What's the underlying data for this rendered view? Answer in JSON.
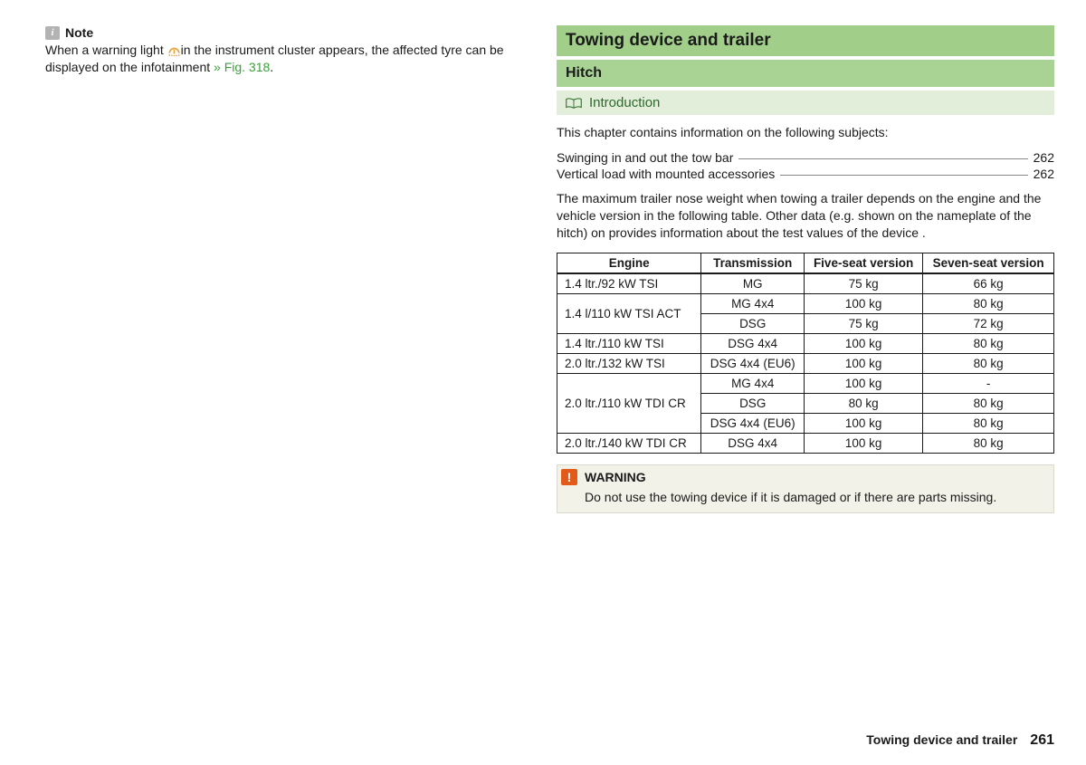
{
  "left": {
    "note_label": "Note",
    "note_text_1": "When a warning light ",
    "note_text_2": "in the instrument cluster appears, the affected tyre can be displayed on the infotainment ",
    "fig_ref": "» Fig. 318",
    "period": "."
  },
  "right": {
    "heading_main": "Towing device and trailer",
    "heading_sub": "Hitch",
    "intro_label": "Introduction",
    "intro_text": "This chapter contains information on the following subjects:",
    "toc": [
      {
        "label": "Swinging in and out the tow bar",
        "page": "262"
      },
      {
        "label": "Vertical load with mounted accessories",
        "page": "262"
      }
    ],
    "body_para": "The maximum trailer nose weight when towing a trailer depends on the engine and the vehicle version in the following table. Other data (e.g. shown on the nameplate of the hitch) on provides information about the test values of the device .",
    "table": {
      "columns": [
        "Engine",
        "Transmission",
        "Five-seat version",
        "Seven-seat version"
      ],
      "rows": [
        {
          "engine": "1.4 ltr./92 kW TSI",
          "trans": "MG",
          "five": "75 kg",
          "seven": "66 kg",
          "rowspan": 1
        },
        {
          "engine": "1.4 l/110 kW TSI ACT",
          "trans": "MG 4x4",
          "five": "100 kg",
          "seven": "80 kg",
          "rowspan": 2
        },
        {
          "engine": "",
          "trans": "DSG",
          "five": "75 kg",
          "seven": "72 kg"
        },
        {
          "engine": "1.4 ltr./110 kW TSI",
          "trans": "DSG 4x4",
          "five": "100 kg",
          "seven": "80 kg",
          "rowspan": 1
        },
        {
          "engine": "2.0 ltr./132 kW TSI",
          "trans": "DSG 4x4 (EU6)",
          "five": "100 kg",
          "seven": "80 kg",
          "rowspan": 1
        },
        {
          "engine": "2.0 ltr./110 kW TDI CR",
          "trans": "MG 4x4",
          "five": "100 kg",
          "seven": "-",
          "rowspan": 3
        },
        {
          "engine": "",
          "trans": "DSG",
          "five": "80 kg",
          "seven": "80 kg"
        },
        {
          "engine": "",
          "trans": "DSG 4x4 (EU6)",
          "five": "100 kg",
          "seven": "80 kg"
        },
        {
          "engine": "2.0 ltr./140 kW TDI CR",
          "trans": "DSG 4x4",
          "five": "100 kg",
          "seven": "80 kg",
          "rowspan": 1
        }
      ]
    },
    "warning_label": "WARNING",
    "warning_text": "Do not use the towing device if it is damaged or if there are parts missing."
  },
  "footer": {
    "title": "Towing device and trailer",
    "page": "261"
  },
  "colors": {
    "green_bar": "#a1cf8a",
    "green_light": "#e3eeda",
    "green_text": "#3a9f3a",
    "warn_orange": "#e25b1a",
    "warn_bg": "#f2f2e8"
  }
}
